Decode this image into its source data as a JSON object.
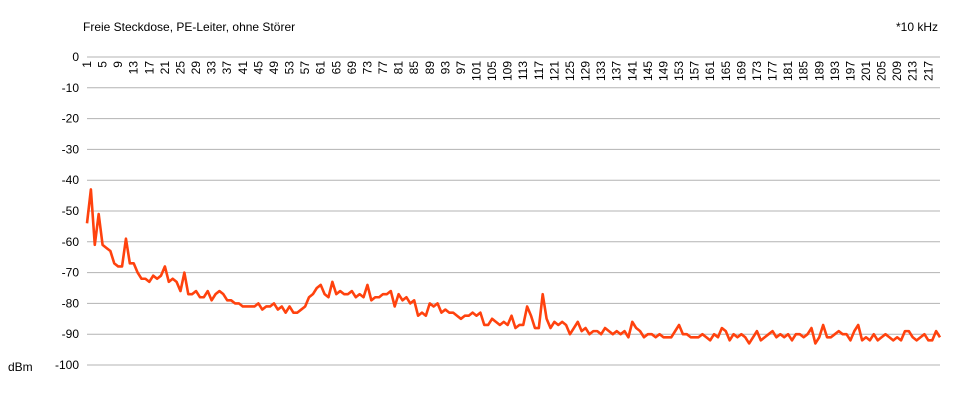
{
  "chart_data": {
    "type": "line",
    "title": "Freie Steckdose, PE-Leiter, ohne Störer",
    "x_unit_label": "*10 kHz",
    "y_label": "dBm",
    "categories": [
      "1",
      null,
      null,
      null,
      "5",
      null,
      null,
      null,
      "9",
      null,
      null,
      null,
      "13",
      null,
      null,
      null,
      "17",
      null,
      null,
      null,
      "21",
      null,
      null,
      null,
      "25",
      null,
      null,
      null,
      "29",
      null,
      null,
      null,
      "33",
      null,
      null,
      null,
      "37",
      null,
      null,
      null,
      "41",
      null,
      null,
      null,
      "45",
      null,
      null,
      null,
      "49",
      null,
      null,
      null,
      "53",
      null,
      null,
      null,
      "57",
      null,
      null,
      null,
      "61",
      null,
      null,
      null,
      "65",
      null,
      null,
      null,
      "69",
      null,
      null,
      null,
      "73",
      null,
      null,
      null,
      "77",
      null,
      null,
      null,
      "81",
      null,
      null,
      null,
      "85",
      null,
      null,
      null,
      "89",
      null,
      null,
      null,
      "93",
      null,
      null,
      null,
      "97",
      null,
      null,
      null,
      "101",
      null,
      null,
      null,
      "105",
      null,
      null,
      null,
      "109",
      null,
      null,
      null,
      "113",
      null,
      null,
      null,
      "117",
      null,
      null,
      null,
      "121",
      null,
      null,
      null,
      "125",
      null,
      null,
      null,
      "129",
      null,
      null,
      null,
      "133",
      null,
      null,
      null,
      "137",
      null,
      null,
      null,
      "141",
      null,
      null,
      null,
      "145",
      null,
      null,
      null,
      "149",
      null,
      null,
      null,
      "153",
      null,
      null,
      null,
      "157",
      null,
      null,
      null,
      "161",
      null,
      null,
      null,
      "165",
      null,
      null,
      null,
      "169",
      null,
      null,
      null,
      "173",
      null,
      null,
      null,
      "177",
      null,
      null,
      null,
      "181",
      null,
      null,
      null,
      "185",
      null,
      null,
      null,
      "189",
      null,
      null,
      null,
      "193",
      null,
      null,
      null,
      "197",
      null,
      null,
      null,
      "201",
      null,
      null,
      null,
      "205",
      null,
      null,
      null,
      "209",
      null,
      null,
      null,
      "213",
      null,
      null,
      null,
      "217",
      null,
      null,
      null
    ],
    "values": [
      -54,
      -43,
      -61,
      -51,
      -61,
      -62,
      -63,
      -67,
      -68,
      -68,
      -59,
      -67,
      -67,
      -70,
      -72,
      -72,
      -73,
      -71,
      -72,
      -71,
      -68,
      -73,
      -72,
      -73,
      -76,
      -70,
      -77,
      -77,
      -76,
      -78,
      -78,
      -76,
      -79,
      -77,
      -76,
      -77,
      -79,
      -79,
      -80,
      -80,
      -81,
      -81,
      -81,
      -81,
      -80,
      -82,
      -81,
      -81,
      -80,
      -82,
      -81,
      -83,
      -81,
      -83,
      -83,
      -82,
      -81,
      -78,
      -77,
      -75,
      -74,
      -77,
      -78,
      -73,
      -77,
      -76,
      -77,
      -77,
      -76,
      -78,
      -77,
      -78,
      -74,
      -79,
      -78,
      -78,
      -77,
      -77,
      -76,
      -81,
      -77,
      -79,
      -78,
      -80,
      -79,
      -84,
      -83,
      -84,
      -80,
      -81,
      -80,
      -83,
      -82,
      -83,
      -83,
      -84,
      -85,
      -84,
      -84,
      -83,
      -84,
      -83,
      -87,
      -87,
      -85,
      -86,
      -87,
      -86,
      -87,
      -84,
      -88,
      -87,
      -87,
      -81,
      -84,
      -88,
      -88,
      -77,
      -85,
      -88,
      -86,
      -87,
      -86,
      -87,
      -90,
      -88,
      -86,
      -89,
      -88,
      -90,
      -89,
      -89,
      -90,
      -88,
      -89,
      -90,
      -89,
      -90,
      -89,
      -91,
      -86,
      -88,
      -89,
      -91,
      -90,
      -90,
      -91,
      -90,
      -91,
      -91,
      -91,
      -89,
      -87,
      -90,
      -90,
      -91,
      -91,
      -91,
      -90,
      -91,
      -92,
      -90,
      -91,
      -88,
      -89,
      -92,
      -90,
      -91,
      -90,
      -91,
      -93,
      -91,
      -89,
      -92,
      -91,
      -90,
      -89,
      -91,
      -90,
      -91,
      -90,
      -92,
      -90,
      -90,
      -91,
      -90,
      -88,
      -93,
      -91,
      -87,
      -91,
      -91,
      -90,
      -89,
      -90,
      -90,
      -92,
      -89,
      -87,
      -92,
      -91,
      -92,
      -90,
      -92,
      -91,
      -90,
      -91,
      -92,
      -91,
      -92,
      -89,
      -89,
      -91,
      -92,
      -91,
      -90,
      -92,
      -92,
      -89,
      -91
    ],
    "color": "#ff420e",
    "ylim": [
      -100,
      0
    ],
    "yticks": [
      0,
      -10,
      -20,
      -30,
      -40,
      -50,
      -60,
      -70,
      -80,
      -90,
      -100
    ],
    "grid": true
  }
}
